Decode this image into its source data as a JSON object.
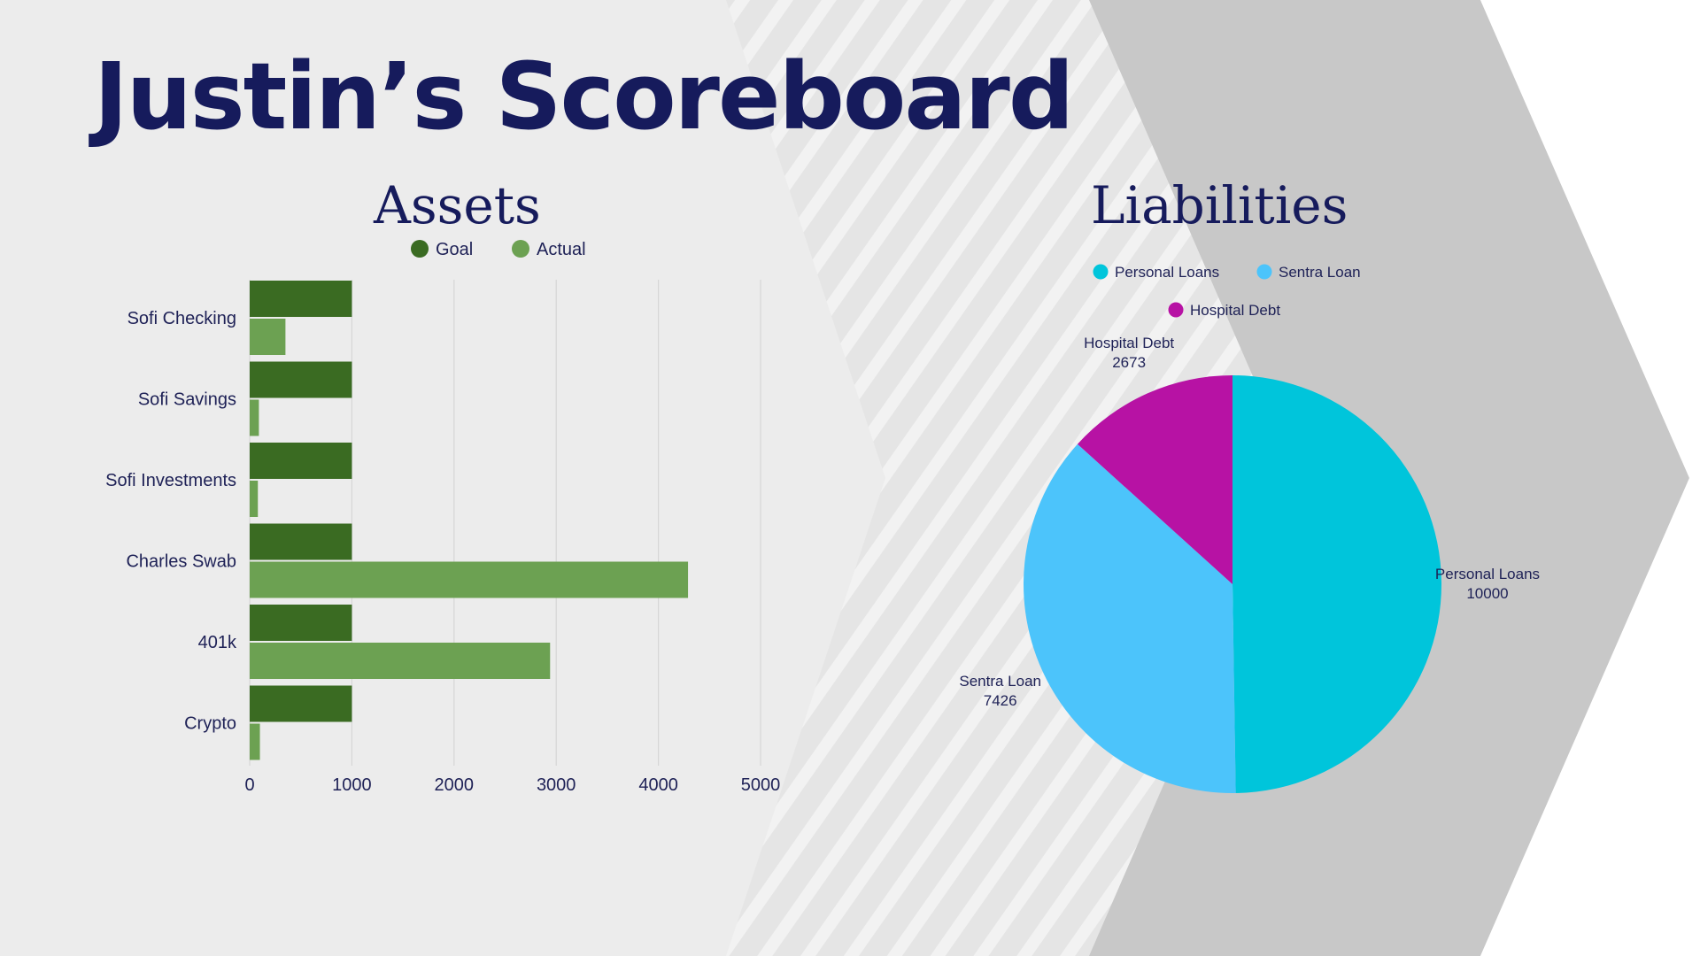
{
  "page": {
    "title": "Justin’s Scoreboard",
    "colors": {
      "title": "#161b5c",
      "background": "#ececec",
      "chevron": "#c8c8c8",
      "goal": "#3a6b22",
      "actual": "#6ca152",
      "personal_loans": "#00c5db",
      "sentra_loan": "#4cc4fb",
      "hospital_debt": "#b712a4"
    }
  },
  "chart_data": [
    {
      "type": "bar",
      "orientation": "horizontal",
      "title": "Assets",
      "categories": [
        "Sofi Checking",
        "Sofi Savings",
        "Sofi Investments",
        "Charles Swab",
        "401k",
        "Crypto"
      ],
      "series": [
        {
          "name": "Goal",
          "values": [
            1000,
            1000,
            1000,
            1000,
            1000,
            1000
          ]
        },
        {
          "name": "Actual",
          "values": [
            350,
            90,
            80,
            4290,
            2940,
            100
          ]
        }
      ],
      "xlim": [
        0,
        5000
      ],
      "xticks": [
        "0",
        "1000",
        "2000",
        "3000",
        "4000",
        "5000"
      ],
      "grid": true,
      "legend": "top"
    },
    {
      "type": "pie",
      "title": "Liabilities",
      "slices": [
        {
          "label": "Personal Loans",
          "value": 10000,
          "value_label": "10000"
        },
        {
          "label": "Sentra Loan",
          "value": 7426,
          "value_label": "7426"
        },
        {
          "label": "Hospital Debt",
          "value": 2673,
          "value_label": "2673"
        }
      ],
      "legend": "top"
    }
  ]
}
